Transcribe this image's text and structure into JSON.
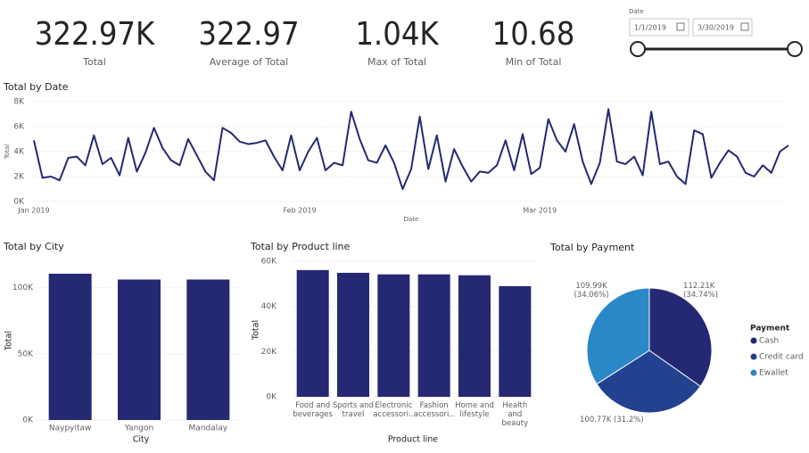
{
  "cards": [
    {
      "value": "322.97K",
      "label": "Total"
    },
    {
      "value": "322.97",
      "label": "Average of Total"
    },
    {
      "value": "1.04K",
      "label": "Max of Total"
    },
    {
      "value": "10.68",
      "label": "Min of Total"
    }
  ],
  "slicer": {
    "label": "Date",
    "start": "1/1/2019",
    "end": "3/30/2019"
  },
  "chart_data": [
    {
      "type": "line",
      "title": "Total by Date",
      "x_label": "Date",
      "y_label": "Total",
      "color": "#252873",
      "grid": true,
      "categories": [
        "Jan 2019",
        null,
        null,
        null,
        null,
        null,
        null,
        null,
        null,
        null,
        null,
        null,
        null,
        null,
        null,
        null,
        null,
        null,
        null,
        null,
        null,
        null,
        null,
        null,
        null,
        null,
        null,
        null,
        null,
        null,
        null,
        "Feb 2019",
        null,
        null,
        null,
        null,
        null,
        null,
        null,
        null,
        null,
        null,
        null,
        null,
        null,
        null,
        null,
        null,
        null,
        null,
        null,
        null,
        null,
        null,
        null,
        null,
        null,
        null,
        null,
        "Mar 2019",
        null,
        null,
        null,
        null,
        null,
        null,
        null,
        null,
        null,
        null,
        null,
        null,
        null,
        null,
        null,
        null,
        null,
        null,
        null,
        null,
        null,
        null,
        null,
        null,
        null,
        null,
        null,
        null,
        null
      ],
      "values": [
        4900,
        1900,
        2000,
        1700,
        3500,
        3600,
        2900,
        5300,
        3000,
        3500,
        2100,
        5100,
        2400,
        3900,
        5900,
        4300,
        3300,
        2900,
        5000,
        3700,
        2400,
        1700,
        5900,
        5500,
        4800,
        4600,
        4700,
        4900,
        3600,
        2500,
        5300,
        2500,
        4000,
        5100,
        2500,
        3100,
        2900,
        7200,
        5000,
        3300,
        3100,
        4500,
        3100,
        1000,
        2600,
        6800,
        2600,
        5300,
        1600,
        4200,
        2800,
        1600,
        2400,
        2300,
        2900,
        4900,
        2500,
        5400,
        2200,
        2700,
        6600,
        4900,
        4000,
        6200,
        3200,
        1400,
        3100,
        7400,
        3200,
        3000,
        3600,
        2100,
        7200,
        3000,
        3200,
        2000,
        1400,
        5700,
        5400,
        1900,
        3100,
        4100,
        3600,
        2300,
        2000,
        2900,
        2300,
        4000,
        4500
      ],
      "ylim": [
        0,
        8000
      ],
      "yticks": [
        {
          "value": 0,
          "label": "0K"
        },
        {
          "value": 2000,
          "label": "2K"
        },
        {
          "value": 4000,
          "label": "4K"
        },
        {
          "value": 6000,
          "label": "6K"
        },
        {
          "value": 8000,
          "label": "8K"
        }
      ]
    },
    {
      "type": "bar",
      "title": "Total by City",
      "x_label": "City",
      "y_label": "Total",
      "color": "#252873",
      "grid": true,
      "categories": [
        "Naypyitaw",
        "Yangon",
        "Mandalay"
      ],
      "values": [
        110600,
        106200,
        106200
      ],
      "ylim": [
        0,
        120000
      ],
      "yticks": [
        {
          "value": 0,
          "label": "0K"
        },
        {
          "value": 50000,
          "label": "50K"
        },
        {
          "value": 100000,
          "label": "100K"
        }
      ]
    },
    {
      "type": "bar",
      "title": "Total by Product line",
      "x_label": "Product line",
      "y_label": "Total",
      "color": "#252873",
      "grid": true,
      "categories": [
        "Food and beverages",
        "Sports and travel",
        "Electronic accessori...",
        "Fashion accessori...",
        "Home and lifestyle",
        "Health and beauty"
      ],
      "values": [
        56100,
        54900,
        54200,
        54200,
        53800,
        49000
      ],
      "ylim": [
        0,
        60000
      ],
      "yticks": [
        {
          "value": 0,
          "label": "0K"
        },
        {
          "value": 20000,
          "label": "20K"
        },
        {
          "value": 40000,
          "label": "40K"
        },
        {
          "value": 60000,
          "label": "60K"
        }
      ]
    },
    {
      "type": "pie",
      "title": "Total by Payment",
      "legend_title": "Payment",
      "series": [
        {
          "name": "Cash",
          "color": "#252873",
          "values": [
            112210
          ],
          "value_labels": [
            "112.21K (34.74%)"
          ]
        },
        {
          "name": "Credit card",
          "color": "#22418f",
          "values": [
            100770
          ],
          "value_labels": [
            "100.77K (31.2%)"
          ]
        },
        {
          "name": "Ewallet",
          "color": "#2b88c8",
          "values": [
            109990
          ],
          "value_labels": [
            "109.99K (34.06%)"
          ]
        }
      ]
    }
  ]
}
